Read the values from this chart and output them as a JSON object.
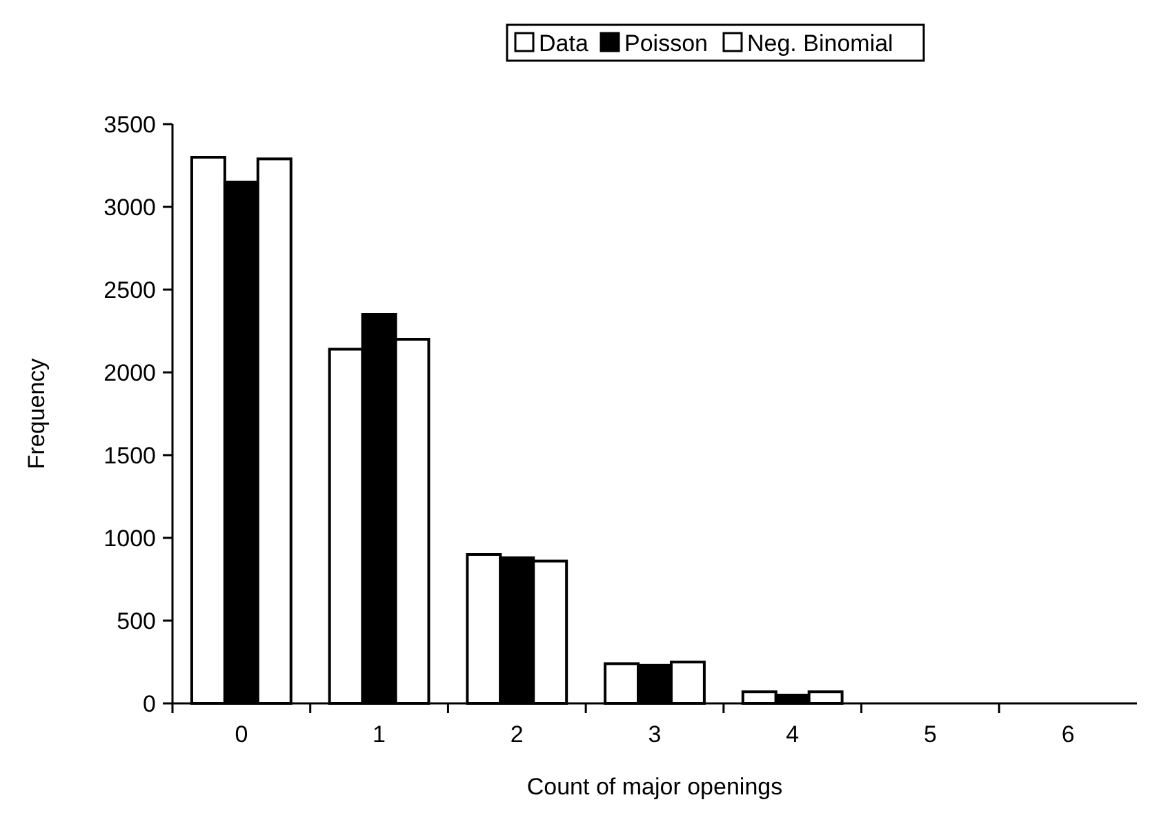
{
  "chart_data": {
    "type": "bar",
    "xlabel": "Count of major openings",
    "ylabel": "Frequency",
    "categories": [
      "0",
      "1",
      "2",
      "3",
      "4",
      "5",
      "6"
    ],
    "series": [
      {
        "name": "Data",
        "color": "#ffffff",
        "values": [
          3300,
          2140,
          900,
          240,
          70,
          null,
          null
        ]
      },
      {
        "name": "Poisson",
        "color": "#000000",
        "values": [
          3150,
          2350,
          880,
          230,
          50,
          null,
          null
        ]
      },
      {
        "name": "Neg. Binomial",
        "color": "#ffffff",
        "values": [
          3290,
          2200,
          860,
          250,
          70,
          null,
          null
        ]
      }
    ],
    "ylim": [
      0,
      3500
    ],
    "yticks": [
      0,
      500,
      1000,
      1500,
      2000,
      2500,
      3000,
      3500
    ],
    "legend": "top",
    "grid": false
  }
}
